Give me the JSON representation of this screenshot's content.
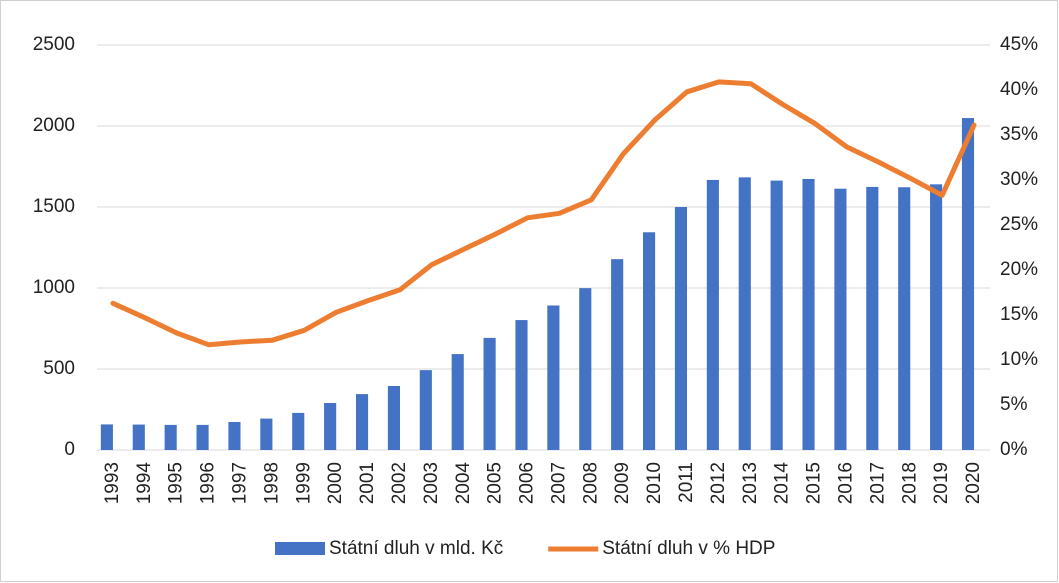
{
  "chart_data": {
    "type": "bar_line",
    "categories": [
      "1993",
      "1994",
      "1995",
      "1996",
      "1997",
      "1998",
      "1999",
      "2000",
      "2001",
      "2002",
      "2003",
      "2004",
      "2005",
      "2006",
      "2007",
      "2008",
      "2009",
      "2010",
      "2011",
      "2012",
      "2013",
      "2014",
      "2015",
      "2016",
      "2017",
      "2018",
      "2019",
      "2020"
    ],
    "series": [
      {
        "name": "Státní dluh v mld. Kč",
        "color": "#4472c4",
        "type": "bar",
        "values": [
          158,
          157,
          155,
          155,
          173,
          194,
          229,
          290,
          345,
          395,
          493,
          592,
          692,
          802,
          892,
          999,
          1178,
          1344,
          1500,
          1667,
          1683,
          1663,
          1673,
          1613,
          1624,
          1622,
          1640,
          2049
        ]
      },
      {
        "name": "Státní dluh v % HDP",
        "color": "#ed7d31",
        "type": "line",
        "axis": "y2",
        "values": [
          16.3,
          14.7,
          13.0,
          11.7,
          12.0,
          12.2,
          13.3,
          15.3,
          16.6,
          17.8,
          20.6,
          22.3,
          24.0,
          25.8,
          26.3,
          27.8,
          32.9,
          36.7,
          39.8,
          40.9,
          40.7,
          38.4,
          36.3,
          33.7,
          32.0,
          30.2,
          28.3,
          36.1
        ]
      }
    ],
    "ylim": [
      0,
      2500
    ],
    "yticks": [
      0,
      500,
      1000,
      1500,
      2000,
      2500
    ],
    "y2lim": [
      0,
      45
    ],
    "y2ticks": [
      {
        "value": 0,
        "label": "0%"
      },
      {
        "value": 5,
        "label": "5%"
      },
      {
        "value": 10,
        "label": "10%"
      },
      {
        "value": 15,
        "label": "15%"
      },
      {
        "value": 20,
        "label": "20%"
      },
      {
        "value": 25,
        "label": "25%"
      },
      {
        "value": 30,
        "label": "30%"
      },
      {
        "value": 35,
        "label": "35%"
      },
      {
        "value": 40,
        "label": "40%"
      },
      {
        "value": 45,
        "label": "45%"
      }
    ],
    "grid": true,
    "legend": "bottom"
  }
}
